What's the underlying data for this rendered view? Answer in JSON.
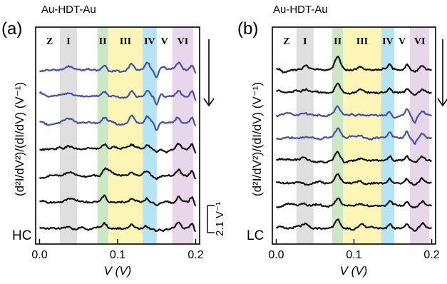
{
  "chart_data": [
    {
      "type": "line",
      "panel_label": "(a)",
      "junction": "Au-HDT-Au",
      "corner_label": "HC",
      "ylabel": "(d²I/dV²)/(dI/dV) (V⁻¹)",
      "xlabel": "V (V)",
      "xlim": [
        -0.005,
        0.205
      ],
      "xticks": [
        "0.0",
        "0.1",
        "0.2"
      ],
      "xtick_values": [
        0.0,
        0.1,
        0.2
      ],
      "scale_bar_label": "2.1 V⁻¹",
      "scale_bar_value": 2.1,
      "arrow_direction": "down",
      "regions": [
        {
          "label": "Z",
          "x0": 0.0,
          "x1": 0.026,
          "color": "none"
        },
        {
          "label": "I",
          "x0": 0.026,
          "x1": 0.048,
          "color": "#d9d9d9"
        },
        {
          "label": "II",
          "x0": 0.074,
          "x1": 0.088,
          "color": "#c3e3b8"
        },
        {
          "label": "III",
          "x0": 0.088,
          "x1": 0.132,
          "color": "#fbf3a8"
        },
        {
          "label": "IV",
          "x0": 0.132,
          "x1": 0.15,
          "color": "#a9dff2"
        },
        {
          "label": "V",
          "x0": 0.15,
          "x1": 0.17,
          "color": "none"
        },
        {
          "label": "VI",
          "x0": 0.17,
          "x1": 0.197,
          "color": "#e4cfe6"
        }
      ],
      "blue_curves": 3,
      "black_curves": 4,
      "colors": {
        "blue": "#4250b0",
        "black": "#111111"
      }
    },
    {
      "type": "line",
      "panel_label": "(b)",
      "junction": "Au-HDT-Au",
      "corner_label": "LC",
      "ylabel": "(d²I/dV²)/(dI/dV) (V⁻¹)",
      "xlabel": "V (V)",
      "xlim": [
        -0.005,
        0.205
      ],
      "xticks": [
        "0.0",
        "0.1",
        "0.2"
      ],
      "xtick_values": [
        0.0,
        0.1,
        0.2
      ],
      "arrow_direction": "down",
      "regions": [
        {
          "label": "Z",
          "x0": 0.0,
          "x1": 0.026,
          "color": "none"
        },
        {
          "label": "I",
          "x0": 0.026,
          "x1": 0.048,
          "color": "#d9d9d9"
        },
        {
          "label": "II",
          "x0": 0.072,
          "x1": 0.086,
          "color": "#c3e3b8"
        },
        {
          "label": "III",
          "x0": 0.086,
          "x1": 0.135,
          "color": "#fbf3a8"
        },
        {
          "label": "IV",
          "x0": 0.135,
          "x1": 0.152,
          "color": "#a9dff2"
        },
        {
          "label": "V",
          "x0": 0.152,
          "x1": 0.172,
          "color": "none"
        },
        {
          "label": "VI",
          "x0": 0.172,
          "x1": 0.197,
          "color": "#e4cfe6"
        }
      ],
      "curve_colors": [
        "black",
        "black",
        "blue",
        "blue",
        "black",
        "black",
        "black",
        "black"
      ],
      "colors": {
        "blue": "#4250b0",
        "black": "#111111"
      }
    }
  ]
}
